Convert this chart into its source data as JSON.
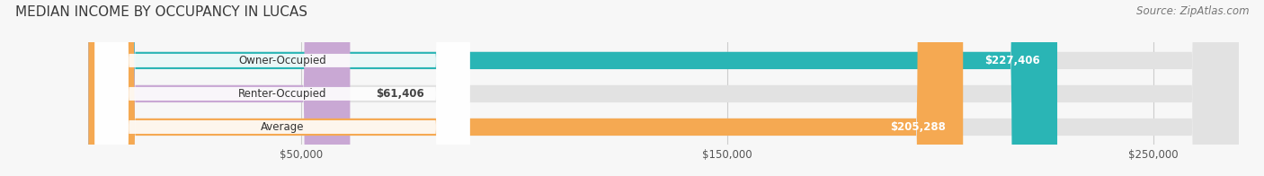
{
  "title": "MEDIAN INCOME BY OCCUPANCY IN LUCAS",
  "source": "Source: ZipAtlas.com",
  "categories": [
    "Owner-Occupied",
    "Renter-Occupied",
    "Average"
  ],
  "values": [
    227406,
    61406,
    205288
  ],
  "bar_colors": [
    "#2ab5b5",
    "#c9a8d4",
    "#f5a952"
  ],
  "bar_labels": [
    "$227,406",
    "$61,406",
    "$205,288"
  ],
  "xlim": [
    0,
    270000
  ],
  "xticks": [
    50000,
    150000,
    250000
  ],
  "xtick_labels": [
    "$50,000",
    "$150,000",
    "$250,000"
  ],
  "background_color": "#f7f7f7",
  "bar_bg_color": "#e2e2e2",
  "title_fontsize": 11,
  "source_fontsize": 8.5,
  "label_fontsize": 8.5,
  "tick_fontsize": 8.5,
  "bar_height": 0.52
}
